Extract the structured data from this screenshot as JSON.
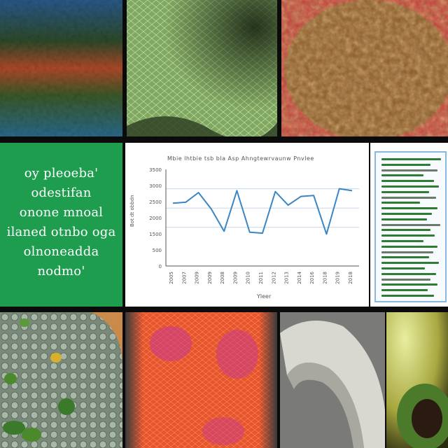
{
  "collage": {
    "panels": [
      {
        "name": "texture-blue-red",
        "colors": [
          "#2a5a8a",
          "#1e3d2a",
          "#b04a2a",
          "#3b6a3a"
        ]
      },
      {
        "name": "texture-green-cells",
        "colors": [
          "#7fa860",
          "#5d8245",
          "#2a3a20"
        ]
      },
      {
        "name": "texture-brown-bumpy",
        "colors": [
          "#8a5a2a",
          "#b07a40",
          "#c23a3a"
        ]
      },
      {
        "name": "texture-orange-red-cells",
        "colors": [
          "#e8552a",
          "#c93a6a",
          "#6a2a8a"
        ]
      },
      {
        "name": "texture-green-bubbles",
        "colors": [
          "#6a8a6a",
          "#3a7a2a",
          "#8a6a4a"
        ]
      },
      {
        "name": "texture-gray-shell",
        "colors": [
          "#d8d8d0",
          "#8a8a86",
          "#4a4a48"
        ]
      },
      {
        "name": "texture-green-dark-blob",
        "colors": [
          "#d8e090",
          "#4a7a2a",
          "#1a1a10"
        ]
      }
    ]
  },
  "text_panel": {
    "lines": [
      "oy pleoeba'",
      "odestifan",
      "onone mnoal",
      "ilaned otnbo oga",
      "olnoneadda",
      "nodmo'"
    ]
  },
  "chart_panel": {
    "title": "Mbie lhtbie tsb bla Asp Ahngtewrvaunw Pnvlee",
    "ylabel": "Bot dt obbdn",
    "xlabel": "Yleer",
    "line_color": "#3a86c4",
    "chart_data": {
      "type": "line",
      "x": [
        "1",
        "2",
        "3",
        "4",
        "5",
        "6",
        "7",
        "8",
        "9",
        "10",
        "11",
        "12",
        "13",
        "14",
        "15"
      ],
      "series": [
        {
          "values": [
            6.5,
            6.6,
            7.6,
            5.9,
            3.6,
            7.8,
            3.5,
            3.4,
            7.7,
            6.3,
            7.2,
            7.3,
            3.3,
            8.0,
            7.8
          ]
        }
      ],
      "ytick_labels": [
        "3500",
        "3000",
        "2500",
        "2000",
        "1500",
        "500",
        "0"
      ],
      "xtick_labels": [
        "2005",
        "2007",
        "2009",
        "2009",
        "2008",
        "2009",
        "2010",
        "2011",
        "2012",
        "2013",
        "2014",
        "2016",
        "2018",
        "2019",
        "2018"
      ]
    }
  },
  "doc_panel": {
    "frame_color": "#88b8e0",
    "line_color": "#2e7d32"
  }
}
